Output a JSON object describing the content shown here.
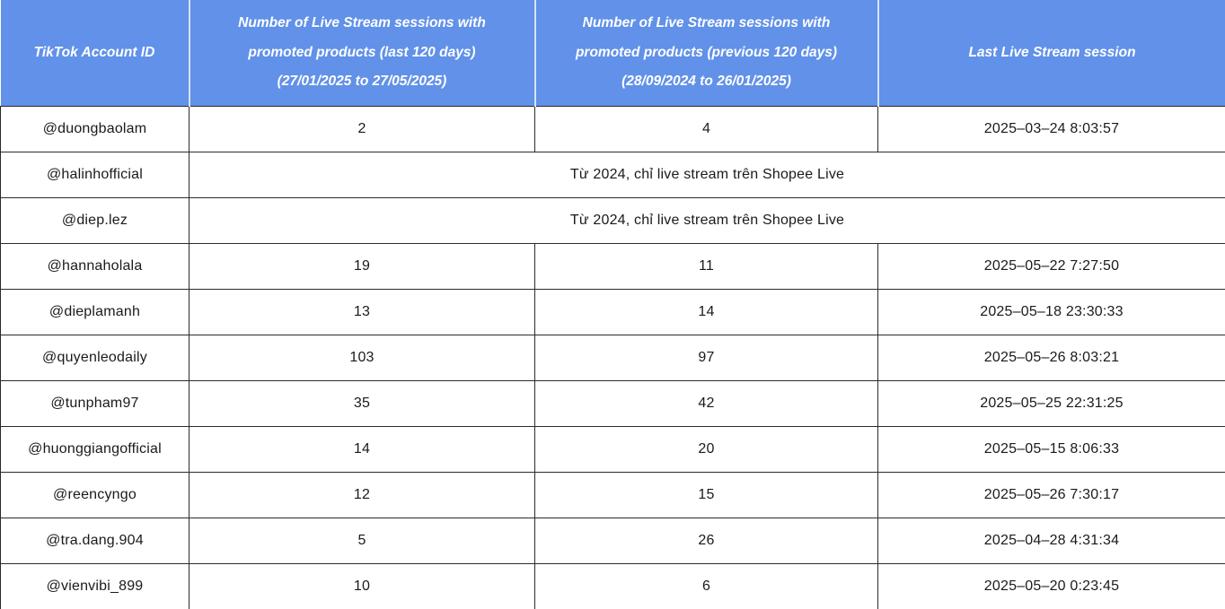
{
  "styles": {
    "header_bg": "#6191e8",
    "header_text": "#ffffff",
    "grid_border": "#2b2b2b"
  },
  "chart_data": {
    "type": "table",
    "columns": [
      "TikTok Account ID",
      "Number of Live Stream sessions with\npromoted products (last 120 days)\n(27/01/2025 to 27/05/2025)",
      "Number of Live Stream sessions with\npromoted products (previous 120 days)\n(28/09/2024 to 26/01/2025)",
      "Last Live Stream session"
    ],
    "rows": [
      {
        "account": "@duongbaolam",
        "current": "2",
        "previous": "4",
        "last_session": "2025–03–24 8:03:57"
      },
      {
        "account": "@halinhofficial",
        "note": "Từ 2024, chỉ live stream trên Shopee Live"
      },
      {
        "account": "@diep.lez",
        "note": "Từ 2024, chỉ live stream trên Shopee Live"
      },
      {
        "account": "@hannaholala",
        "current": "19",
        "previous": "11",
        "last_session": "2025–05–22 7:27:50"
      },
      {
        "account": "@dieplamanh",
        "current": "13",
        "previous": "14",
        "last_session": "2025–05–18 23:30:33"
      },
      {
        "account": "@quyenleodaily",
        "current": "103",
        "previous": "97",
        "last_session": "2025–05–26 8:03:21"
      },
      {
        "account": "@tunpham97",
        "current": "35",
        "previous": "42",
        "last_session": "2025–05–25 22:31:25"
      },
      {
        "account": "@huonggiangofficial",
        "current": "14",
        "previous": "20",
        "last_session": "2025–05–15 8:06:33"
      },
      {
        "account": "@reencyngo",
        "current": "12",
        "previous": "15",
        "last_session": "2025–05–26 7:30:17"
      },
      {
        "account": "@tra.dang.904",
        "current": "5",
        "previous": "26",
        "last_session": "2025–04–28 4:31:34"
      },
      {
        "account": "@vienvibi_899",
        "current": "10",
        "previous": "6",
        "last_session": "2025–05–20 0:23:45"
      }
    ]
  }
}
